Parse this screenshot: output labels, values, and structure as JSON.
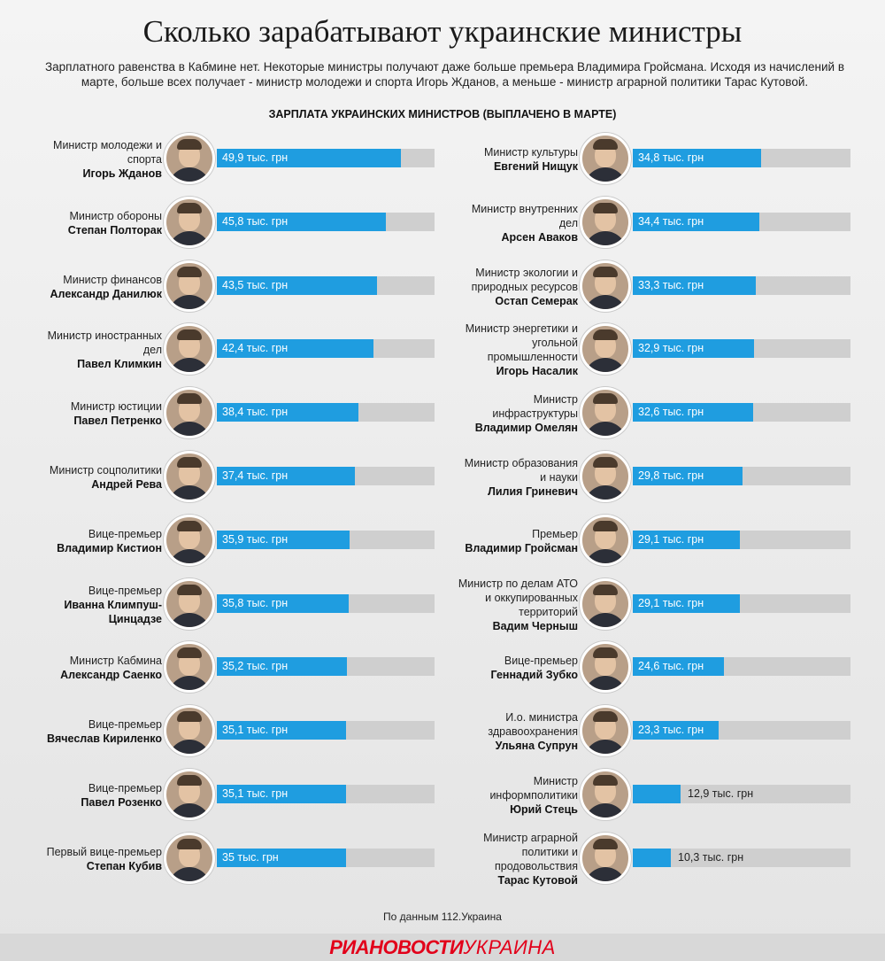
{
  "title": "Сколько зарабатывают украинские министры",
  "subtitle": "Зарплатного равенства в Кабмине нет. Некоторые министры получают даже больше премьера Владимира Гройсмана. Исходя из начислений в марте, больше всех получает - министр молодежи и спорта Игорь Жданов, а меньше - министр аграрной политики Тарас Кутовой.",
  "chart_data": {
    "type": "bar",
    "title": "ЗАРПЛАТА УКРАИНСКИХ МИНИСТРОВ (ВЫПЛАЧЕНО В МАРТЕ)",
    "xlim": [
      0,
      59
    ],
    "colors": {
      "bar": "#1f9de0",
      "track": "#cfcfcf"
    },
    "left": [
      {
        "role": "Министр молодежи и спорта",
        "name": "Игорь Жданов",
        "value": 49.9,
        "label": "49,9 тыс. грн"
      },
      {
        "role": "Министр обороны",
        "name": "Степан Полторак",
        "value": 45.8,
        "label": "45,8 тыс. грн"
      },
      {
        "role": "Министр финансов",
        "name": "Александр Данилюк",
        "value": 43.5,
        "label": "43,5 тыс. грн"
      },
      {
        "role": "Министр иностранных дел",
        "name": "Павел Климкин",
        "value": 42.4,
        "label": "42,4 тыс. грн"
      },
      {
        "role": "Министр юстиции",
        "name": "Павел Петренко",
        "value": 38.4,
        "label": "38,4 тыс. грн"
      },
      {
        "role": "Министр соцполитики",
        "name": "Андрей Рева",
        "value": 37.4,
        "label": "37,4 тыс. грн"
      },
      {
        "role": "Вице-премьер",
        "name": "Владимир Кистион",
        "value": 35.9,
        "label": "35,9 тыс. грн"
      },
      {
        "role": "Вице-премьер",
        "name": "Иванна Климпуш-Цинцадзе",
        "value": 35.8,
        "label": "35,8 тыс. грн"
      },
      {
        "role": "Министр Кабмина",
        "name": "Александр Саенко",
        "value": 35.2,
        "label": "35,2 тыс. грн"
      },
      {
        "role": "Вице-премьер",
        "name": "Вячеслав Кириленко",
        "value": 35.1,
        "label": "35,1 тыс. грн"
      },
      {
        "role": "Вице-премьер",
        "name": "Павел Розенко",
        "value": 35.1,
        "label": "35,1 тыс. грн"
      },
      {
        "role": "Первый вице-премьер",
        "name": "Степан Кубив",
        "value": 35,
        "label": "35 тыс. грн"
      }
    ],
    "right": [
      {
        "role": "Министр культуры",
        "name": "Евгений Нищук",
        "value": 34.8,
        "label": "34,8 тыс. грн"
      },
      {
        "role": "Министр внутренних дел",
        "name": "Арсен Аваков",
        "value": 34.4,
        "label": "34,4 тыс. грн"
      },
      {
        "role": "Министр экологии и природных ресурсов",
        "name": "Остап Семерак",
        "value": 33.3,
        "label": "33,3 тыс. грн"
      },
      {
        "role": "Министр энергетики и угольной промышленности",
        "name": "Игорь Насалик",
        "value": 32.9,
        "label": "32,9  тыс. грн"
      },
      {
        "role": "Министр инфраструктуры",
        "name": "Владимир Омелян",
        "value": 32.6,
        "label": "32,6 тыс. грн"
      },
      {
        "role": "Министр образования и науки",
        "name": "Лилия Гриневич",
        "value": 29.8,
        "label": "29,8 тыс. грн"
      },
      {
        "role": "Премьер",
        "name": "Владимир Гройсман",
        "value": 29.1,
        "label": "29,1 тыс. грн"
      },
      {
        "role": "Министр по делам АТО и оккупированных территорий",
        "name": "Вадим Черныш",
        "value": 29.1,
        "label": "29,1 тыс. грн"
      },
      {
        "role": "Вице-премьер",
        "name": "Геннадий Зубко",
        "value": 24.6,
        "label": "24,6 тыс. грн"
      },
      {
        "role": "И.о. министра здравоохранения",
        "name": "Ульяна Супрун",
        "value": 23.3,
        "label": "23,3 тыс. грн"
      },
      {
        "role": "Министр информполитики",
        "name": "Юрий Стець",
        "value": 12.9,
        "label": "12,9 тыс. грн"
      },
      {
        "role": "Министр аграрной политики и продовольствия",
        "name": "Тарас Кутовой",
        "value": 10.3,
        "label": "10,3 тыс. грн"
      }
    ]
  },
  "source": "По данным 112.Украина",
  "brand": {
    "part1": "РИАНОВОСТИ",
    "part2": "УКРАИНА"
  }
}
